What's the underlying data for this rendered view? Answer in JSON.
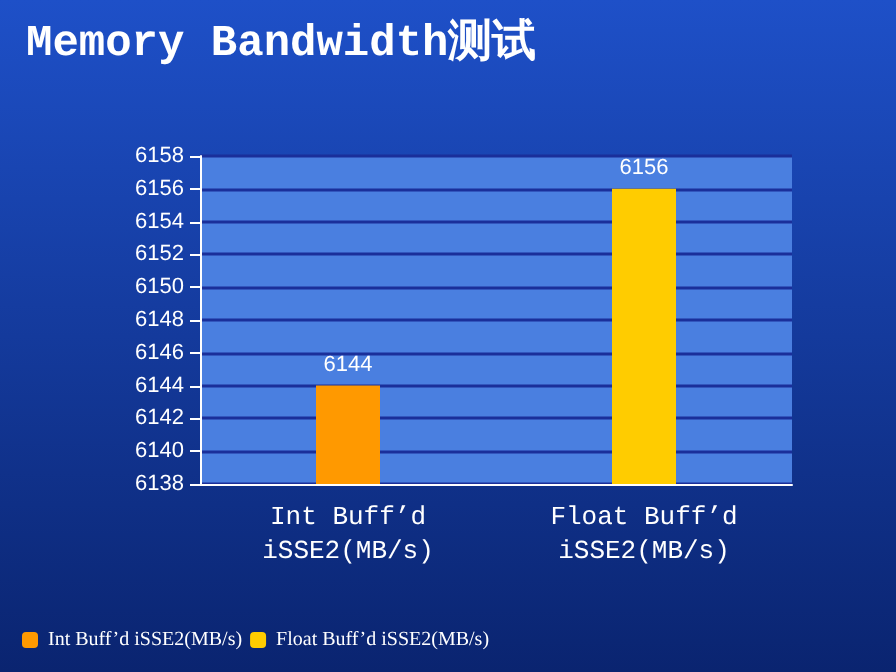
{
  "chart_data": {
    "type": "bar",
    "title": "Memory Bandwidth测试",
    "categories": [
      "Int Buff’d\niSSE2(MB/s)",
      "Float Buff’d\niSSE2(MB/s)"
    ],
    "series": [
      {
        "name": "Int Buff’d iSSE2(MB/s)",
        "color": "#ff9900",
        "values": [
          6144,
          null
        ]
      },
      {
        "name": "Float Buff’d iSSE2(MB/s)",
        "color": "#ffcc00",
        "values": [
          null,
          6156
        ]
      }
    ],
    "ylim": [
      6138,
      6158
    ],
    "yticks": [
      6138,
      6140,
      6142,
      6144,
      6146,
      6148,
      6150,
      6152,
      6154,
      6156,
      6158
    ],
    "grid": "y",
    "legend": "bottom left",
    "data_labels": true
  }
}
